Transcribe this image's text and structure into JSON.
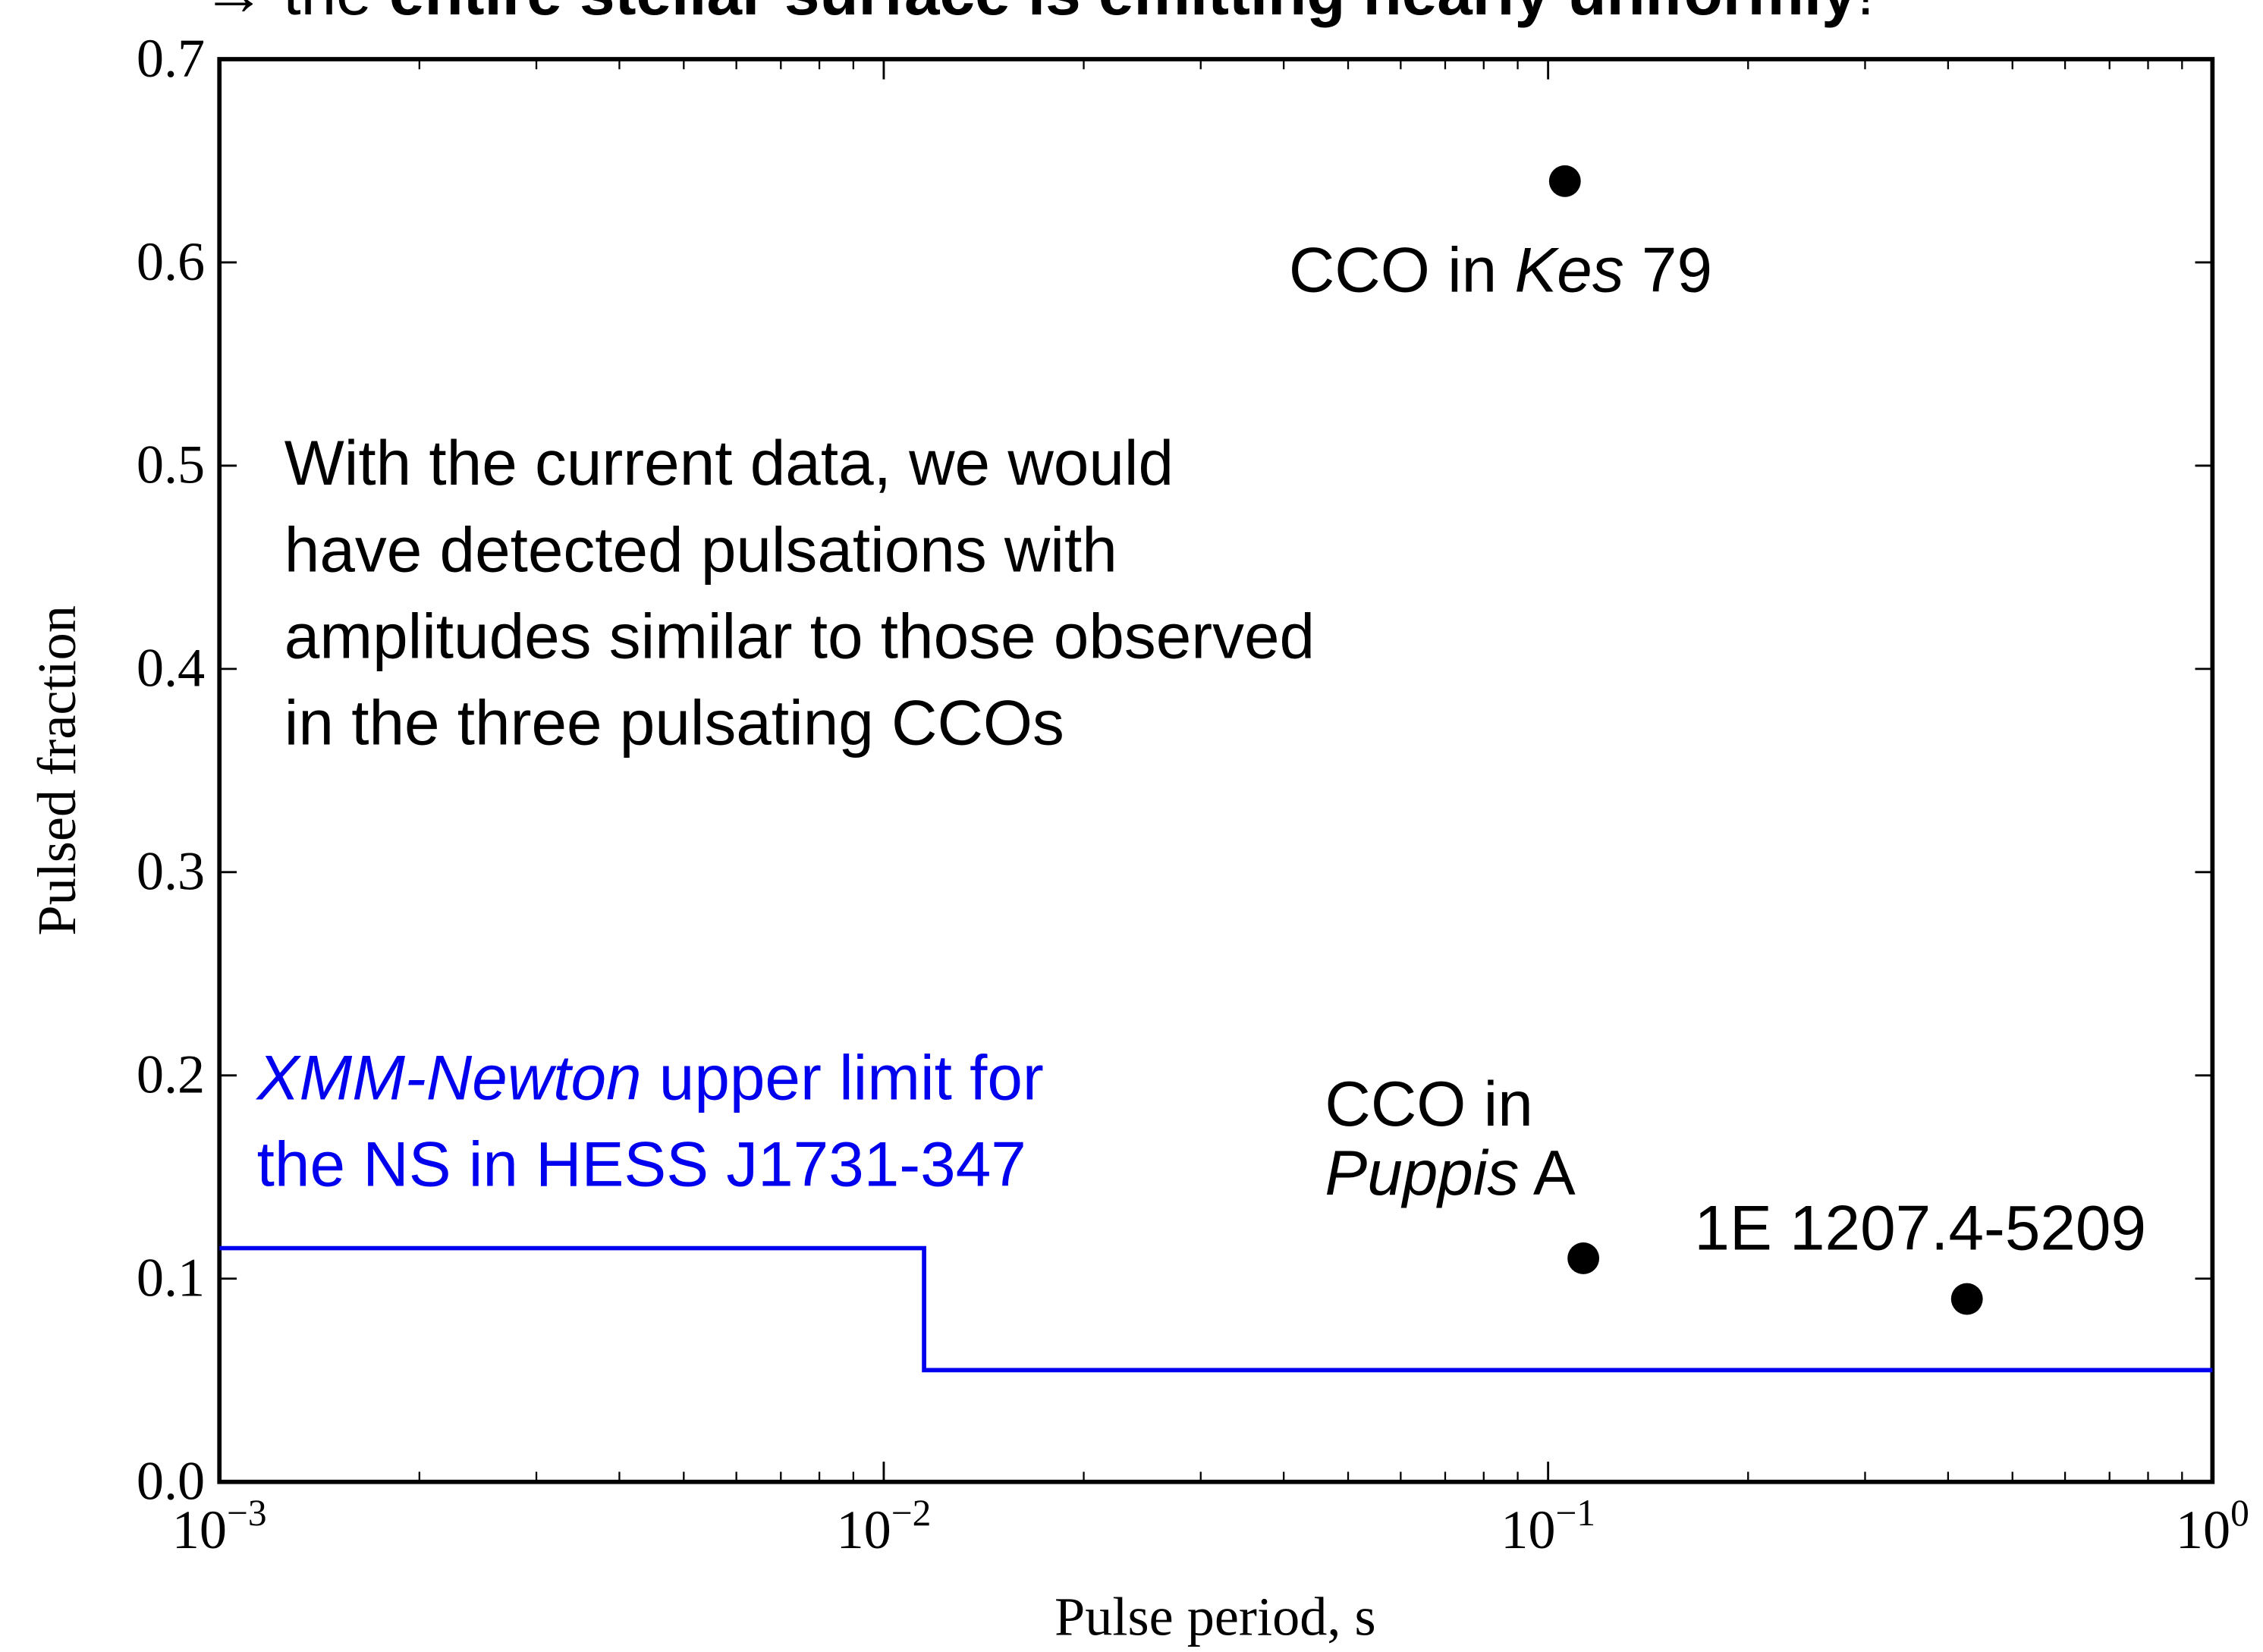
{
  "chart_data": {
    "type": "scatter",
    "top_text": [
      {
        "text": "→ the "
      },
      {
        "text": "entire stellar surface is emitting nearly uniformly",
        "bold": true
      },
      {
        "text": "!"
      }
    ],
    "xlabel": "Pulse period, s",
    "ylabel": "Pulsed fraction",
    "xscale": "log",
    "xlim": [
      0.001,
      1
    ],
    "ylim": [
      0,
      0.7
    ],
    "xticks": [
      {
        "value": 0.001,
        "label": "10−3"
      },
      {
        "value": 0.01,
        "label": "10−2"
      },
      {
        "value": 0.1,
        "label": "10−1"
      },
      {
        "value": 1,
        "label": "100"
      }
    ],
    "yticks": [
      {
        "value": 0,
        "label": "0.0"
      },
      0.1,
      0.2,
      0.3,
      0.4,
      0.5,
      0.6,
      0.7
    ],
    "series": [
      {
        "kind": "step",
        "color": "#0000ee",
        "x": [
          0.001,
          0.0115,
          1
        ],
        "values": [
          0.115,
          0.055,
          0.055
        ]
      },
      {
        "kind": "points",
        "color": "#000000",
        "x": [
          0.106,
          0.113,
          0.427
        ],
        "values": [
          0.64,
          0.11,
          0.09
        ]
      }
    ],
    "annotations": [
      {
        "color": "#000000",
        "lines": [
          [
            {
              "text": "CCO in "
            },
            {
              "text": "Kes",
              "italic": true
            },
            {
              "text": " 79"
            }
          ]
        ]
      },
      {
        "color": "#000000",
        "lines": [
          [
            {
              "text": "CCO in"
            }
          ],
          [
            {
              "text": "Puppis",
              "italic": true
            },
            {
              "text": " A"
            }
          ]
        ]
      },
      {
        "color": "#000000",
        "lines": [
          [
            {
              "text": "1E 1207.4-5209"
            }
          ]
        ]
      },
      {
        "color": "#000000",
        "lines": [
          [
            {
              "text": "With the current data, we would"
            }
          ],
          [
            {
              "text": "have detected pulsations with"
            }
          ],
          [
            {
              "text": "amplitudes similar to those observed"
            }
          ],
          [
            {
              "text": "in the three pulsating CCOs"
            }
          ]
        ]
      },
      {
        "color": "#0000ee",
        "lines": [
          [
            {
              "text": "XMM-Newton",
              "italic": true
            },
            {
              "text": " upper limit for"
            }
          ],
          [
            {
              "text": "the NS in HESS J1731-347"
            }
          ]
        ]
      }
    ]
  }
}
